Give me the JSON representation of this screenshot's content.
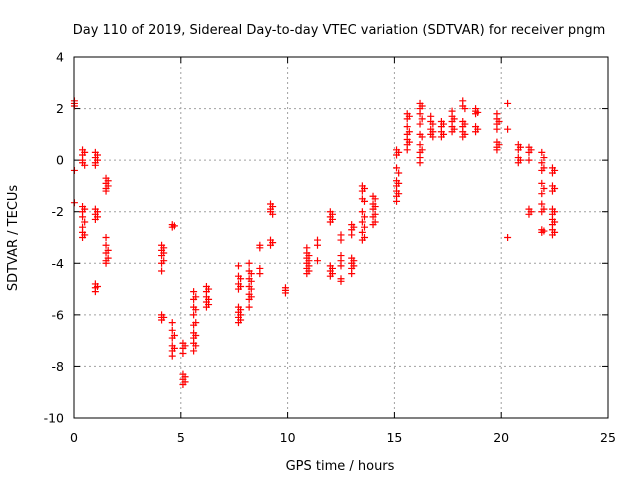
{
  "chart_data": {
    "type": "scatter",
    "title": "Day 110 of 2019, Sidereal Day-to-day VTEC variation (SDTVAR) for receiver pngm",
    "xlabel": "GPS time / hours",
    "ylabel": "SDTVAR / TECUs",
    "xlim": [
      0,
      25
    ],
    "ylim": [
      -10,
      4
    ],
    "xticks": [
      0,
      5,
      10,
      15,
      20,
      25
    ],
    "yticks": [
      -10,
      -8,
      -6,
      -4,
      -2,
      0,
      2,
      4
    ],
    "xtick_labels": [
      "0",
      "5",
      "10",
      "15",
      "20",
      "25"
    ],
    "ytick_labels": [
      "-10",
      "-8",
      "-6",
      "-4",
      "-2",
      "0",
      "2",
      "4"
    ],
    "grid": true,
    "marker": "+",
    "series": [
      {
        "name": "SDTVAR",
        "color": "#ff0000",
        "clusters": [
          {
            "x": 0.02,
            "y": [
              2.3,
              2.2,
              2.1
            ]
          },
          {
            "x": 0.02,
            "y": [
              -0.4
            ]
          },
          {
            "x": 0.02,
            "y": [
              -1.65
            ]
          },
          {
            "x": 0.4,
            "y": [
              0.4,
              0.2,
              0.0,
              -0.1,
              -1.8,
              -2.0,
              -2.2,
              -2.6,
              -2.8,
              -3.0
            ]
          },
          {
            "x": 0.5,
            "y": [
              0.3,
              -0.2,
              -1.9,
              -2.4,
              -2.9
            ]
          },
          {
            "x": 1.0,
            "y": [
              0.3,
              0.1,
              -0.1,
              -0.2,
              -1.9,
              -2.1,
              -2.3,
              -4.8,
              -4.95,
              -5.1
            ]
          },
          {
            "x": 1.1,
            "y": [
              0.2,
              0.0,
              -2.0,
              -2.2,
              -4.9
            ]
          },
          {
            "x": 1.5,
            "y": [
              -0.7,
              -0.9,
              -1.1,
              -1.2,
              -3.0,
              -3.3,
              -3.6,
              -3.9,
              -4.0
            ]
          },
          {
            "x": 1.6,
            "y": [
              -0.8,
              -1.0,
              -3.5,
              -3.8
            ]
          },
          {
            "x": 4.1,
            "y": [
              -3.3,
              -3.5,
              -3.7,
              -4.0,
              -4.3,
              -6.0,
              -6.1,
              -6.2
            ]
          },
          {
            "x": 4.2,
            "y": [
              -3.4,
              -3.6,
              -3.9,
              -6.1
            ]
          },
          {
            "x": 4.6,
            "y": [
              -2.5,
              -2.6,
              -6.3,
              -6.6,
              -6.9,
              -7.2,
              -7.4,
              -7.6
            ]
          },
          {
            "x": 4.7,
            "y": [
              -2.55,
              -6.8,
              -7.3
            ]
          },
          {
            "x": 5.1,
            "y": [
              -7.1,
              -7.3,
              -7.5,
              -8.3,
              -8.5,
              -8.7
            ]
          },
          {
            "x": 5.2,
            "y": [
              -7.2,
              -8.4,
              -8.6
            ]
          },
          {
            "x": 5.6,
            "y": [
              -5.1,
              -5.4,
              -5.7,
              -6.0,
              -6.4,
              -6.7,
              -6.9,
              -7.1,
              -7.4
            ]
          },
          {
            "x": 5.7,
            "y": [
              -5.3,
              -5.8,
              -6.3,
              -6.8,
              -7.2
            ]
          },
          {
            "x": 6.2,
            "y": [
              -4.9,
              -5.1,
              -5.3,
              -5.5,
              -5.7
            ]
          },
          {
            "x": 6.3,
            "y": [
              -5.0,
              -5.4,
              -5.6
            ]
          },
          {
            "x": 7.7,
            "y": [
              -4.1,
              -4.5,
              -4.8,
              -5.0,
              -5.7,
              -5.9,
              -6.1,
              -6.3
            ]
          },
          {
            "x": 7.8,
            "y": [
              -4.6,
              -4.9,
              -5.8,
              -6.0,
              -6.2
            ]
          },
          {
            "x": 8.2,
            "y": [
              -4.0,
              -4.3,
              -4.6,
              -4.9,
              -5.2,
              -5.4,
              -5.7
            ]
          },
          {
            "x": 8.3,
            "y": [
              -4.4,
              -4.7,
              -5.0,
              -5.3
            ]
          },
          {
            "x": 8.7,
            "y": [
              -3.3,
              -3.4,
              -4.2,
              -4.4
            ]
          },
          {
            "x": 9.2,
            "y": [
              -1.7,
              -1.9,
              -2.0,
              -3.1,
              -3.3
            ]
          },
          {
            "x": 9.3,
            "y": [
              -1.8,
              -2.1,
              -3.2
            ]
          },
          {
            "x": 9.9,
            "y": [
              -4.95,
              -5.05,
              -5.15
            ]
          },
          {
            "x": 10.9,
            "y": [
              -3.4,
              -3.6,
              -3.8,
              -4.0,
              -4.2,
              -4.4
            ]
          },
          {
            "x": 11.0,
            "y": [
              -3.7,
              -3.9,
              -4.1,
              -4.3
            ]
          },
          {
            "x": 11.4,
            "y": [
              -3.1,
              -3.3,
              -3.9
            ]
          },
          {
            "x": 12.0,
            "y": [
              -2.0,
              -2.2,
              -2.4,
              -4.1,
              -4.3,
              -4.5
            ]
          },
          {
            "x": 12.1,
            "y": [
              -2.1,
              -2.3,
              -4.2,
              -4.4
            ]
          },
          {
            "x": 12.5,
            "y": [
              -2.9,
              -3.1,
              -3.7,
              -3.9,
              -4.1,
              -4.6,
              -4.7
            ]
          },
          {
            "x": 13.0,
            "y": [
              -2.5,
              -2.7,
              -2.9,
              -3.8,
              -4.0,
              -4.2,
              -4.4
            ]
          },
          {
            "x": 13.1,
            "y": [
              -2.6,
              -3.9,
              -4.1
            ]
          },
          {
            "x": 13.5,
            "y": [
              -1.0,
              -1.2,
              -1.5,
              -2.0,
              -2.4,
              -2.8,
              -3.1
            ]
          },
          {
            "x": 13.6,
            "y": [
              -1.1,
              -1.6,
              -2.2,
              -2.6,
              -3.0
            ]
          },
          {
            "x": 14.0,
            "y": [
              -1.4,
              -1.7,
              -1.9,
              -2.2,
              -2.5
            ]
          },
          {
            "x": 14.1,
            "y": [
              -1.5,
              -1.8,
              -2.1,
              -2.4
            ]
          },
          {
            "x": 15.1,
            "y": [
              0.4,
              0.2,
              -0.3,
              -0.8,
              -1.0,
              -1.2,
              -1.4,
              -1.6
            ]
          },
          {
            "x": 15.2,
            "y": [
              0.3,
              -0.5,
              -0.9,
              -1.3
            ]
          },
          {
            "x": 15.6,
            "y": [
              1.8,
              1.6,
              1.3,
              1.0,
              0.8,
              0.6,
              0.4
            ]
          },
          {
            "x": 15.7,
            "y": [
              1.7,
              1.1,
              0.7
            ]
          },
          {
            "x": 16.2,
            "y": [
              2.2,
              2.0,
              1.8,
              1.4,
              1.0,
              0.6,
              0.3,
              0.1,
              -0.1
            ]
          },
          {
            "x": 16.3,
            "y": [
              2.1,
              1.6,
              0.9,
              0.4
            ]
          },
          {
            "x": 16.7,
            "y": [
              1.7,
              1.5,
              1.2,
              1.0
            ]
          },
          {
            "x": 16.8,
            "y": [
              1.4,
              1.1,
              0.9
            ]
          },
          {
            "x": 17.2,
            "y": [
              1.5,
              1.3,
              1.1,
              0.9
            ]
          },
          {
            "x": 17.3,
            "y": [
              1.4,
              1.0
            ]
          },
          {
            "x": 17.7,
            "y": [
              1.9,
              1.7,
              1.5,
              1.3,
              1.1
            ]
          },
          {
            "x": 17.8,
            "y": [
              1.6,
              1.2
            ]
          },
          {
            "x": 18.2,
            "y": [
              2.3,
              2.1,
              1.5,
              1.3,
              1.1,
              0.9
            ]
          },
          {
            "x": 18.3,
            "y": [
              2.0,
              1.4,
              1.0
            ]
          },
          {
            "x": 18.8,
            "y": [
              2.0,
              1.9,
              1.8,
              1.3,
              1.1
            ]
          },
          {
            "x": 18.9,
            "y": [
              1.85,
              1.2
            ]
          },
          {
            "x": 19.8,
            "y": [
              1.8,
              1.6,
              1.4,
              1.2,
              0.7,
              0.5,
              0.4
            ]
          },
          {
            "x": 19.9,
            "y": [
              1.5,
              0.6
            ]
          },
          {
            "x": 20.3,
            "y": [
              2.2,
              1.2,
              -3.0
            ]
          },
          {
            "x": 20.8,
            "y": [
              0.6,
              0.4,
              0.1,
              -0.1
            ]
          },
          {
            "x": 20.9,
            "y": [
              0.5,
              0.0
            ]
          },
          {
            "x": 21.3,
            "y": [
              0.5,
              0.3,
              0.0,
              -1.9,
              -2.1
            ]
          },
          {
            "x": 21.4,
            "y": [
              0.4,
              -2.0
            ]
          },
          {
            "x": 21.9,
            "y": [
              0.3,
              -0.1,
              -0.4,
              -0.9,
              -1.3,
              -1.7,
              -2.0,
              -2.7,
              -2.8
            ]
          },
          {
            "x": 22.0,
            "y": [
              0.1,
              -0.3,
              -1.1,
              -1.9,
              -2.75
            ]
          },
          {
            "x": 22.4,
            "y": [
              -0.3,
              -0.5,
              -1.0,
              -1.2,
              -1.9,
              -2.1,
              -2.3,
              -2.5,
              -2.7,
              -2.9
            ]
          },
          {
            "x": 22.5,
            "y": [
              -0.4,
              -1.1,
              -2.0,
              -2.4,
              -2.8
            ]
          }
        ]
      }
    ]
  }
}
